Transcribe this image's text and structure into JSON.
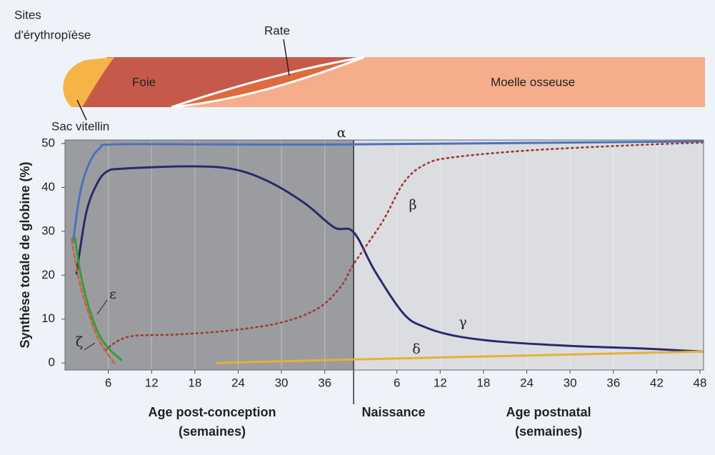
{
  "diagram": {
    "title_lines": [
      "Sites",
      "d'érythropïèse"
    ],
    "labels": {
      "yolk": "Sac vitellin",
      "liver": "Foie",
      "spleen": "Rate",
      "marrow": "Moelle osseuse"
    }
  },
  "chart_data": {
    "type": "line",
    "ylabel": "Synthèse totale de globine (%)",
    "xlabel_prenatal": [
      "Age post-conception",
      "(semaines)"
    ],
    "xlabel_postnatal": [
      "Age postnatal",
      "(semaines)"
    ],
    "divider": {
      "x": 40,
      "label": "Naissance"
    },
    "xlim": [
      0,
      88.5
    ],
    "ylim": [
      -1.6,
      50.8
    ],
    "xticks": [
      6,
      12,
      18,
      24,
      30,
      36,
      {
        "value": 46,
        "label": "6"
      },
      {
        "value": 52,
        "label": "12"
      },
      {
        "value": 58,
        "label": "18"
      },
      {
        "value": 64,
        "label": "24"
      },
      {
        "value": 70,
        "label": "30"
      },
      {
        "value": 76,
        "label": "36"
      },
      {
        "value": 82,
        "label": "42"
      },
      {
        "value": 88,
        "label": "48"
      }
    ],
    "yticks": [
      0,
      10,
      20,
      30,
      40,
      50
    ],
    "grid": true,
    "series": [
      {
        "name": "α",
        "color": "#4a72c0",
        "style": "solid",
        "x": [
          1.1,
          2.1,
          3.3,
          4.8,
          6.8,
          20.5,
          40,
          88.4
        ],
        "values": [
          27.4,
          38.8,
          45.3,
          48.9,
          49.8,
          49.8,
          49.8,
          50.5
        ]
      },
      {
        "name": "γ",
        "color": "#2b2a6b",
        "style": "solid",
        "x": [
          1.6,
          2.9,
          4.3,
          5.8,
          8.3,
          17.6,
          23.5,
          28.4,
          33.3,
          37.3,
          40,
          43,
          47,
          50,
          54,
          60,
          70,
          80,
          88.3
        ],
        "values": [
          20.4,
          33.9,
          40.4,
          43.6,
          44.3,
          44.8,
          44.1,
          41.2,
          36.3,
          30.9,
          29.8,
          20.8,
          11.1,
          8.1,
          6.2,
          4.9,
          3.9,
          3.3,
          2.6
        ]
      },
      {
        "name": "β",
        "color": "#9e3a32",
        "style": "dotted",
        "x": [
          5.6,
          7.3,
          9.7,
          15.6,
          23.5,
          30.4,
          35.3,
          38.3,
          40,
          44,
          47,
          50,
          54,
          65,
          80,
          88.3
        ],
        "values": [
          2.9,
          5.0,
          6.2,
          6.5,
          7.5,
          9.4,
          12.7,
          17.6,
          22.5,
          32.2,
          41.2,
          45.3,
          46.9,
          48.5,
          49.7,
          50.2
        ]
      },
      {
        "name": "ε",
        "color": "#3a9a3a",
        "style": "solid",
        "x": [
          1.4,
          2.1,
          3.3,
          4.8,
          6.3,
          7.8
        ],
        "values": [
          28.5,
          20.8,
          12.7,
          6.2,
          2.9,
          0.7
        ]
      },
      {
        "name": "ζ",
        "color": "#c8643c",
        "style": "dashed",
        "x": [
          0.9,
          1.9,
          3.3,
          4.8,
          6.8
        ],
        "values": [
          28.2,
          19.2,
          11.1,
          4.9,
          0
        ]
      },
      {
        "name": "δ",
        "color": "#e2b238",
        "style": "solid",
        "x": [
          21,
          40,
          88.3
        ],
        "values": [
          0,
          0.8,
          2.6
        ]
      }
    ]
  }
}
